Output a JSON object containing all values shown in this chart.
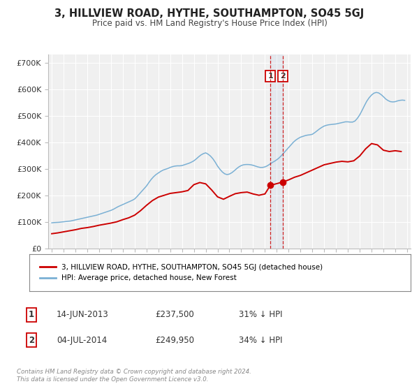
{
  "title": "3, HILLVIEW ROAD, HYTHE, SOUTHAMPTON, SO45 5GJ",
  "subtitle": "Price paid vs. HM Land Registry's House Price Index (HPI)",
  "legend_label_red": "3, HILLVIEW ROAD, HYTHE, SOUTHAMPTON, SO45 5GJ (detached house)",
  "legend_label_blue": "HPI: Average price, detached house, New Forest",
  "annotation_label_1": "1",
  "annotation_label_2": "2",
  "event1_date": 2013.46,
  "event1_val": 237500,
  "event1_label": "14-JUN-2013",
  "event1_price": "£237,500",
  "event1_pct": "31% ↓ HPI",
  "event2_date": 2014.51,
  "event2_val": 249950,
  "event2_label": "04-JUL-2014",
  "event2_price": "£249,950",
  "event2_pct": "34% ↓ HPI",
  "footer": "Contains HM Land Registry data © Crown copyright and database right 2024.\nThis data is licensed under the Open Government Licence v3.0.",
  "ylabel_ticks": [
    "£0",
    "£100K",
    "£200K",
    "£300K",
    "£400K",
    "£500K",
    "£600K",
    "£700K"
  ],
  "ytick_vals": [
    0,
    100000,
    200000,
    300000,
    400000,
    500000,
    600000,
    700000
  ],
  "ylim": [
    0,
    730000
  ],
  "xlim_start": 1994.7,
  "xlim_end": 2025.3,
  "red_color": "#cc0000",
  "blue_color": "#7ab0d4",
  "background_color": "#f0f0f0",
  "grid_color": "#ffffff",
  "hpi_data_x": [
    1995.0,
    1995.2,
    1995.4,
    1995.6,
    1995.8,
    1996.0,
    1996.2,
    1996.4,
    1996.6,
    1996.8,
    1997.0,
    1997.2,
    1997.4,
    1997.6,
    1997.8,
    1998.0,
    1998.2,
    1998.4,
    1998.6,
    1998.8,
    1999.0,
    1999.2,
    1999.4,
    1999.6,
    1999.8,
    2000.0,
    2000.2,
    2000.4,
    2000.6,
    2000.8,
    2001.0,
    2001.2,
    2001.4,
    2001.6,
    2001.8,
    2002.0,
    2002.2,
    2002.4,
    2002.6,
    2002.8,
    2003.0,
    2003.2,
    2003.4,
    2003.6,
    2003.8,
    2004.0,
    2004.2,
    2004.4,
    2004.6,
    2004.8,
    2005.0,
    2005.2,
    2005.4,
    2005.6,
    2005.8,
    2006.0,
    2006.2,
    2006.4,
    2006.6,
    2006.8,
    2007.0,
    2007.2,
    2007.4,
    2007.6,
    2007.8,
    2008.0,
    2008.2,
    2008.4,
    2008.6,
    2008.8,
    2009.0,
    2009.2,
    2009.4,
    2009.6,
    2009.8,
    2010.0,
    2010.2,
    2010.4,
    2010.6,
    2010.8,
    2011.0,
    2011.2,
    2011.4,
    2011.6,
    2011.8,
    2012.0,
    2012.2,
    2012.4,
    2012.6,
    2012.8,
    2013.0,
    2013.2,
    2013.4,
    2013.6,
    2013.8,
    2014.0,
    2014.2,
    2014.4,
    2014.6,
    2014.8,
    2015.0,
    2015.2,
    2015.4,
    2015.6,
    2015.8,
    2016.0,
    2016.2,
    2016.4,
    2016.6,
    2016.8,
    2017.0,
    2017.2,
    2017.4,
    2017.6,
    2017.8,
    2018.0,
    2018.2,
    2018.4,
    2018.6,
    2018.8,
    2019.0,
    2019.2,
    2019.4,
    2019.6,
    2019.8,
    2020.0,
    2020.2,
    2020.4,
    2020.6,
    2020.8,
    2021.0,
    2021.2,
    2021.4,
    2021.6,
    2021.8,
    2022.0,
    2022.2,
    2022.4,
    2022.6,
    2022.8,
    2023.0,
    2023.2,
    2023.4,
    2023.6,
    2023.8,
    2024.0,
    2024.2,
    2024.4,
    2024.6,
    2024.8
  ],
  "hpi_data_y": [
    96000,
    97000,
    97500,
    98000,
    99000,
    100000,
    101000,
    102000,
    103000,
    105000,
    107000,
    109000,
    111000,
    113000,
    115000,
    117000,
    119000,
    121000,
    123000,
    125000,
    128000,
    131000,
    134000,
    137000,
    140000,
    143000,
    147000,
    152000,
    157000,
    161000,
    165000,
    169000,
    173000,
    177000,
    181000,
    186000,
    195000,
    205000,
    215000,
    225000,
    235000,
    248000,
    260000,
    270000,
    278000,
    284000,
    290000,
    295000,
    298000,
    301000,
    305000,
    308000,
    310000,
    311000,
    311000,
    312000,
    315000,
    318000,
    321000,
    325000,
    330000,
    337000,
    345000,
    352000,
    357000,
    360000,
    355000,
    348000,
    338000,
    325000,
    310000,
    298000,
    288000,
    281000,
    278000,
    280000,
    285000,
    292000,
    300000,
    307000,
    312000,
    315000,
    316000,
    316000,
    315000,
    313000,
    310000,
    307000,
    305000,
    305000,
    307000,
    311000,
    317000,
    323000,
    328000,
    334000,
    341000,
    350000,
    360000,
    370000,
    380000,
    390000,
    400000,
    408000,
    414000,
    419000,
    422000,
    425000,
    427000,
    428000,
    430000,
    436000,
    443000,
    450000,
    456000,
    461000,
    464000,
    466000,
    467000,
    468000,
    469000,
    471000,
    473000,
    475000,
    477000,
    477000,
    476000,
    476000,
    480000,
    490000,
    503000,
    520000,
    538000,
    555000,
    568000,
    578000,
    585000,
    588000,
    586000,
    580000,
    572000,
    563000,
    557000,
    553000,
    552000,
    553000,
    556000,
    558000,
    559000,
    558000
  ],
  "red_data_x": [
    1995.0,
    1995.5,
    1996.0,
    1996.5,
    1997.0,
    1997.5,
    1998.0,
    1998.5,
    1999.0,
    1999.5,
    2000.0,
    2000.5,
    2001.0,
    2001.5,
    2002.0,
    2002.5,
    2003.0,
    2003.5,
    2004.0,
    2004.5,
    2005.0,
    2005.5,
    2006.0,
    2006.5,
    2007.0,
    2007.5,
    2008.0,
    2008.5,
    2009.0,
    2009.5,
    2010.0,
    2010.5,
    2011.0,
    2011.5,
    2012.0,
    2012.5,
    2013.0,
    2013.46,
    2014.51,
    2015.0,
    2015.5,
    2016.0,
    2016.5,
    2017.0,
    2017.5,
    2018.0,
    2018.5,
    2019.0,
    2019.5,
    2020.0,
    2020.5,
    2021.0,
    2021.5,
    2022.0,
    2022.5,
    2023.0,
    2023.5,
    2024.0,
    2024.5
  ],
  "red_data_y": [
    55000,
    58000,
    62000,
    66000,
    70000,
    75000,
    78000,
    82000,
    87000,
    91000,
    95000,
    100000,
    108000,
    115000,
    125000,
    142000,
    162000,
    180000,
    193000,
    200000,
    207000,
    210000,
    213000,
    218000,
    240000,
    248000,
    243000,
    220000,
    194000,
    185000,
    196000,
    206000,
    210000,
    212000,
    205000,
    200000,
    205000,
    237500,
    249950,
    258000,
    268000,
    275000,
    285000,
    295000,
    305000,
    315000,
    320000,
    325000,
    328000,
    326000,
    330000,
    348000,
    375000,
    395000,
    390000,
    370000,
    365000,
    368000,
    365000
  ]
}
